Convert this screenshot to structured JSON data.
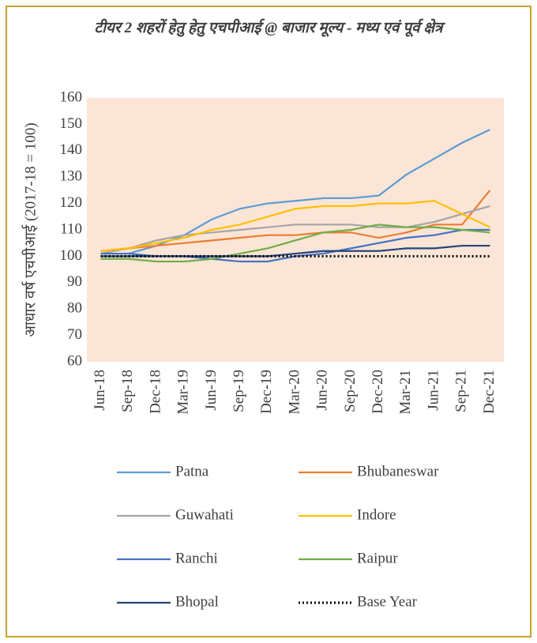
{
  "chart_data": {
    "type": "line",
    "title": "टीयर 2 शहरों हेतु हेतु एचपीआई @ बाजार मूल्य - मध्य एवं पूर्व क्षेत्र",
    "y_label": "आधार वर्ष एचपीआई (2017-18 = 100)",
    "categories": [
      "Jun-18",
      "Sep-18",
      "Dec-18",
      "Mar-19",
      "Jun-19",
      "Sep-19",
      "Dec-19",
      "Mar-20",
      "Jun-20",
      "Sep-20",
      "Dec-20",
      "Mar-21",
      "Jun-21",
      "Sep-21",
      "Dec-21"
    ],
    "ylim": [
      60,
      160
    ],
    "yticks": [
      60,
      70,
      80,
      90,
      100,
      110,
      120,
      130,
      140,
      150,
      160
    ],
    "grid": false,
    "background": "#fbe5d6",
    "series": [
      {
        "name": "Patna",
        "color": "#5b9bd5",
        "values": [
          101,
          101,
          104,
          108,
          114,
          118,
          120,
          121,
          122,
          122,
          123,
          131,
          137,
          143,
          148
        ]
      },
      {
        "name": "Bhubaneswar",
        "color": "#ed7d31",
        "values": [
          102,
          103,
          104,
          105,
          106,
          107,
          108,
          108,
          109,
          109,
          107,
          109,
          112,
          112,
          125
        ]
      },
      {
        "name": "Guwahati",
        "color": "#a5a5a5",
        "values": [
          101,
          103,
          106,
          108,
          109,
          110,
          111,
          112,
          112,
          112,
          111,
          111,
          113,
          116,
          119
        ]
      },
      {
        "name": "Indore",
        "color": "#ffc000",
        "values": [
          102,
          103,
          105,
          107,
          110,
          112,
          115,
          118,
          119,
          119,
          120,
          120,
          121,
          116,
          111
        ]
      },
      {
        "name": "Ranchi",
        "color": "#4472c4",
        "values": [
          101,
          101,
          100,
          100,
          99,
          98,
          98,
          100,
          101,
          103,
          105,
          107,
          108,
          110,
          110
        ]
      },
      {
        "name": "Raipur",
        "color": "#70ad47",
        "values": [
          99,
          99,
          98,
          98,
          99,
          101,
          103,
          106,
          109,
          110,
          112,
          111,
          111,
          110,
          109
        ]
      },
      {
        "name": "Bhopal",
        "color": "#264478",
        "values": [
          100,
          100,
          100,
          100,
          100,
          100,
          100,
          101,
          102,
          102,
          102,
          103,
          103,
          104,
          104
        ]
      },
      {
        "name": "Base Year",
        "color": "#000000",
        "line_style": "dotted",
        "values": [
          100,
          100,
          100,
          100,
          100,
          100,
          100,
          100,
          100,
          100,
          100,
          100,
          100,
          100,
          100
        ]
      }
    ]
  }
}
